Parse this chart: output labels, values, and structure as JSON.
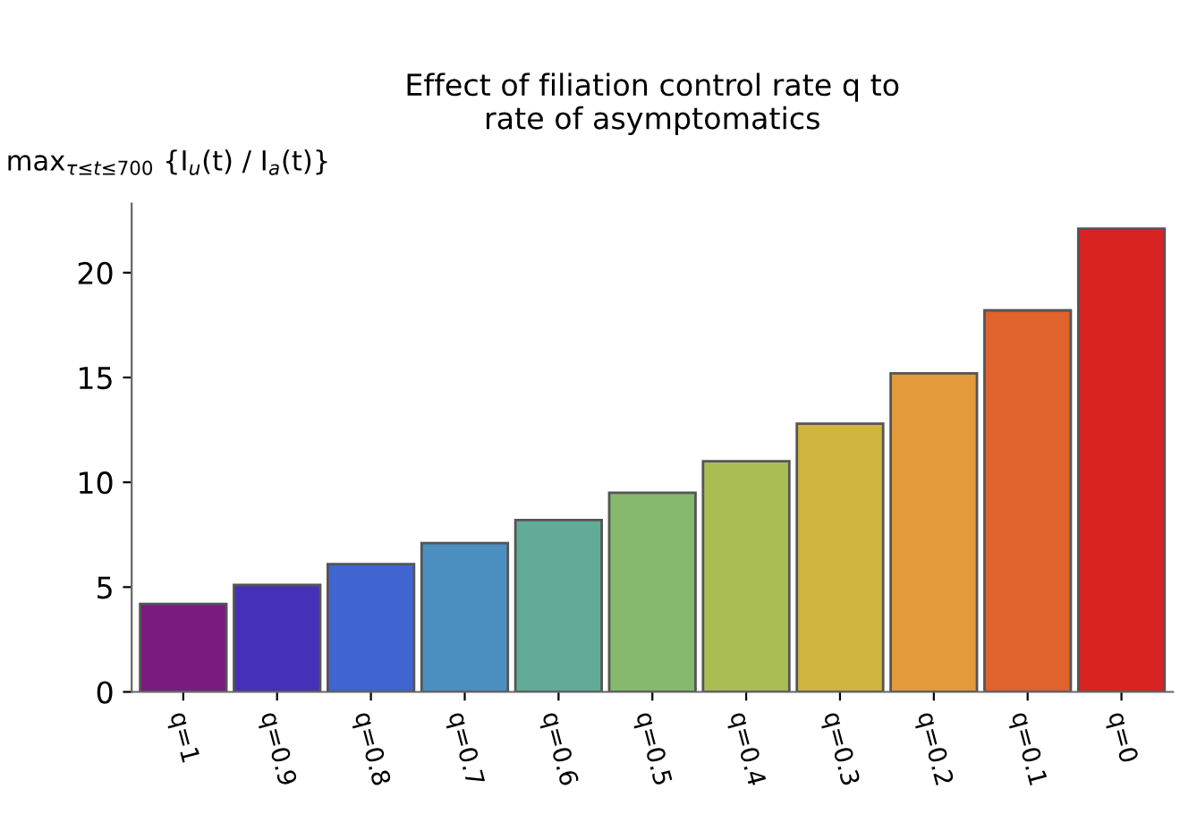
{
  "chart_data": {
    "type": "bar",
    "title": "Effect of filiation control rate q to\nrate of asymptomatics",
    "ylabel": "max$_{τ≤t≤700}$ {I$_{u}$(t) / I$_{a}$(t)}",
    "categories": [
      "q=1",
      "q=0.9",
      "q=0.8",
      "q=0.7",
      "q=0.6",
      "q=0.5",
      "q=0.4",
      "q=0.3",
      "q=0.2",
      "q=0.1",
      "q=0"
    ],
    "values": [
      4.2,
      5.1,
      6.1,
      7.1,
      8.2,
      9.5,
      11.0,
      12.8,
      15.2,
      18.2,
      22.1
    ],
    "colors": [
      "#7a1b80",
      "#4530b8",
      "#4065d0",
      "#4b8fc0",
      "#62ab98",
      "#86b96e",
      "#aabd53",
      "#cfb440",
      "#e29a3a",
      "#e0622d",
      "#d92222"
    ],
    "ylim": [
      0,
      23.3
    ],
    "yticks": [
      0,
      5,
      10,
      15,
      20
    ],
    "grid": false,
    "legend": false
  }
}
